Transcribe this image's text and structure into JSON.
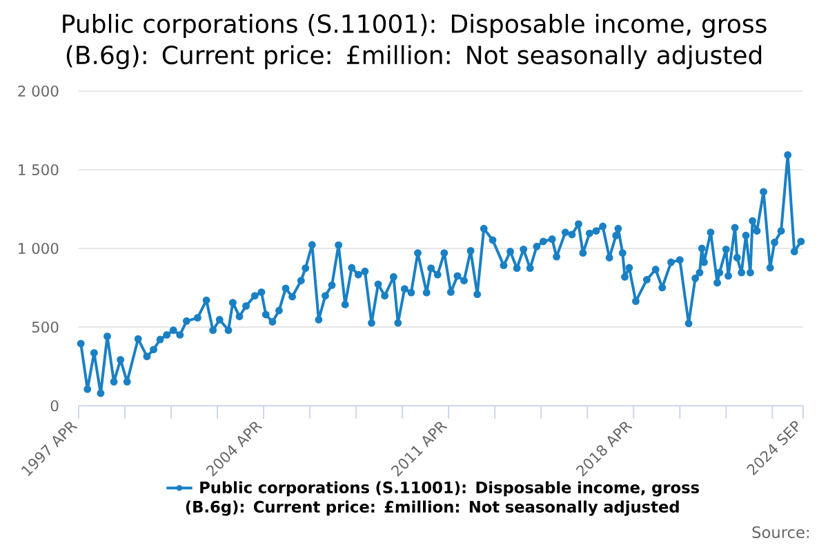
{
  "chart_data": {
    "type": "line",
    "title": "Public corporations (S.11001): Disposable income, gross (B.6g): Current price: £million: Not seasonally adjusted",
    "annotations": [
      "Source:"
    ],
    "x": [
      "1997-05",
      "1997-08",
      "1997-11",
      "1998-02",
      "1998-05",
      "1998-08",
      "1998-11",
      "1999-02",
      "1999-07",
      "1999-11",
      "2000-02",
      "2000-05",
      "2000-08",
      "2000-11",
      "2001-02",
      "2001-05",
      "2001-10",
      "2002-02",
      "2002-05",
      "2002-08",
      "2002-12",
      "2003-02",
      "2003-05",
      "2003-08",
      "2003-12",
      "2004-03",
      "2004-05",
      "2004-08",
      "2004-11",
      "2005-02",
      "2005-05",
      "2005-09",
      "2005-11",
      "2006-02",
      "2006-05",
      "2006-08",
      "2006-11",
      "2007-02",
      "2007-05",
      "2007-08",
      "2007-11",
      "2008-02",
      "2008-05",
      "2008-08",
      "2008-11",
      "2009-03",
      "2009-05",
      "2009-08",
      "2009-11",
      "2010-02",
      "2010-06",
      "2010-08",
      "2010-11",
      "2011-02",
      "2011-05",
      "2011-08",
      "2011-11",
      "2012-02",
      "2012-05",
      "2012-08",
      "2012-12",
      "2013-05",
      "2013-08",
      "2013-11",
      "2014-02",
      "2014-05",
      "2014-08",
      "2014-11",
      "2015-03",
      "2015-05",
      "2015-09",
      "2015-12",
      "2016-03",
      "2016-05",
      "2016-08",
      "2016-11",
      "2017-02",
      "2017-05",
      "2017-08",
      "2017-09",
      "2017-11",
      "2017-12",
      "2018-02",
      "2018-05",
      "2018-10",
      "2019-02",
      "2019-05",
      "2019-09",
      "2020-01",
      "2020-05",
      "2020-08",
      "2020-10",
      "2020-11",
      "2020-12",
      "2021-03",
      "2021-06",
      "2021-07",
      "2021-10",
      "2021-11",
      "2022-02",
      "2022-03",
      "2022-05",
      "2022-07",
      "2022-09",
      "2022-10",
      "2022-12",
      "2023-03",
      "2023-06",
      "2023-08",
      "2023-11",
      "2024-02",
      "2024-05",
      "2024-08"
    ],
    "series": [
      {
        "name": "Public corporations (S.11001): Disposable income, gross (B.6g): Current price: £million: Not seasonally adjusted",
        "color": "#1a80c4",
        "values": [
          395,
          105,
          336,
          79,
          441,
          152,
          292,
          152,
          425,
          313,
          357,
          421,
          450,
          480,
          450,
          538,
          559,
          670,
          480,
          547,
          480,
          655,
          567,
          634,
          699,
          722,
          579,
          533,
          605,
          746,
          693,
          795,
          874,
          1023,
          547,
          699,
          766,
          1021,
          643,
          877,
          833,
          854,
          526,
          772,
          699,
          819,
          526,
          743,
          719,
          971,
          719,
          874,
          833,
          971,
          722,
          825,
          795,
          985,
          708,
          1126,
          1053,
          892,
          980,
          874,
          994,
          874,
          1012,
          1044,
          1059,
          947,
          1102,
          1088,
          1155,
          971,
          1096,
          1111,
          1140,
          941,
          1082,
          1126,
          971,
          819,
          877,
          664,
          801,
          866,
          751,
          912,
          927,
          523,
          810,
          846,
          1000,
          912,
          1102,
          781,
          846,
          994,
          825,
          1132,
          941,
          846,
          1082,
          846,
          1175,
          1111,
          1360,
          877,
          1038,
          1111,
          1594,
          980,
          1044
        ]
      }
    ],
    "xlim": [
      "1997-04",
      "2024-09"
    ],
    "xticks": [
      {
        "value": "1997-04",
        "label": "1997 APR"
      },
      {
        "value": "1999-01",
        "label": null
      },
      {
        "value": "2000-10",
        "label": null
      },
      {
        "value": "2002-07",
        "label": null
      },
      {
        "value": "2004-04",
        "label": "2004 APR"
      },
      {
        "value": "2006-01",
        "label": null
      },
      {
        "value": "2007-10",
        "label": null
      },
      {
        "value": "2009-07",
        "label": null
      },
      {
        "value": "2011-04",
        "label": "2011 APR"
      },
      {
        "value": "2013-01",
        "label": null
      },
      {
        "value": "2014-10",
        "label": null
      },
      {
        "value": "2016-07",
        "label": null
      },
      {
        "value": "2018-04",
        "label": "2018 APR"
      },
      {
        "value": "2020-01",
        "label": null
      },
      {
        "value": "2021-10",
        "label": null
      },
      {
        "value": "2023-07",
        "label": null
      },
      {
        "value": "2024-09",
        "label": "2024 SEP"
      }
    ],
    "ylim": [
      0,
      2000
    ],
    "yticks": [
      0,
      500,
      {
        "value": 1000,
        "label": "1 000"
      },
      {
        "value": 1500,
        "label": "1 500"
      },
      {
        "value": 2000,
        "label": "2 000"
      }
    ],
    "grid": "y",
    "legend": "bottom",
    "marker": "circle",
    "line_style": "solid"
  }
}
